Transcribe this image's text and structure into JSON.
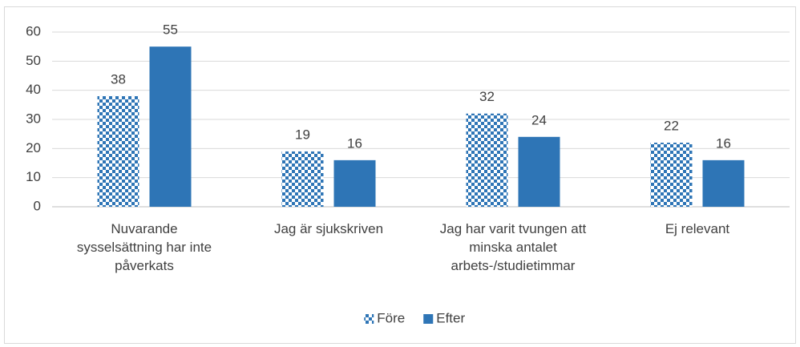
{
  "chart_data": {
    "type": "bar",
    "categories": [
      "Nuvarande sysselsättning har inte påverkats",
      "Jag är sjukskriven",
      "Jag har varit tvungen att minska antalet arbets-/studietimmar",
      "Ej relevant"
    ],
    "series": [
      {
        "name": "Före",
        "color": "#2e75b6",
        "pattern": "checker",
        "values": [
          38,
          19,
          32,
          22
        ]
      },
      {
        "name": "Efter",
        "color": "#2e75b6",
        "values": [
          55,
          16,
          24,
          16
        ]
      }
    ],
    "ylim": [
      0,
      60
    ],
    "yticks": [
      0,
      10,
      20,
      30,
      40,
      50,
      60
    ],
    "grid": true,
    "legend": "bottom"
  }
}
